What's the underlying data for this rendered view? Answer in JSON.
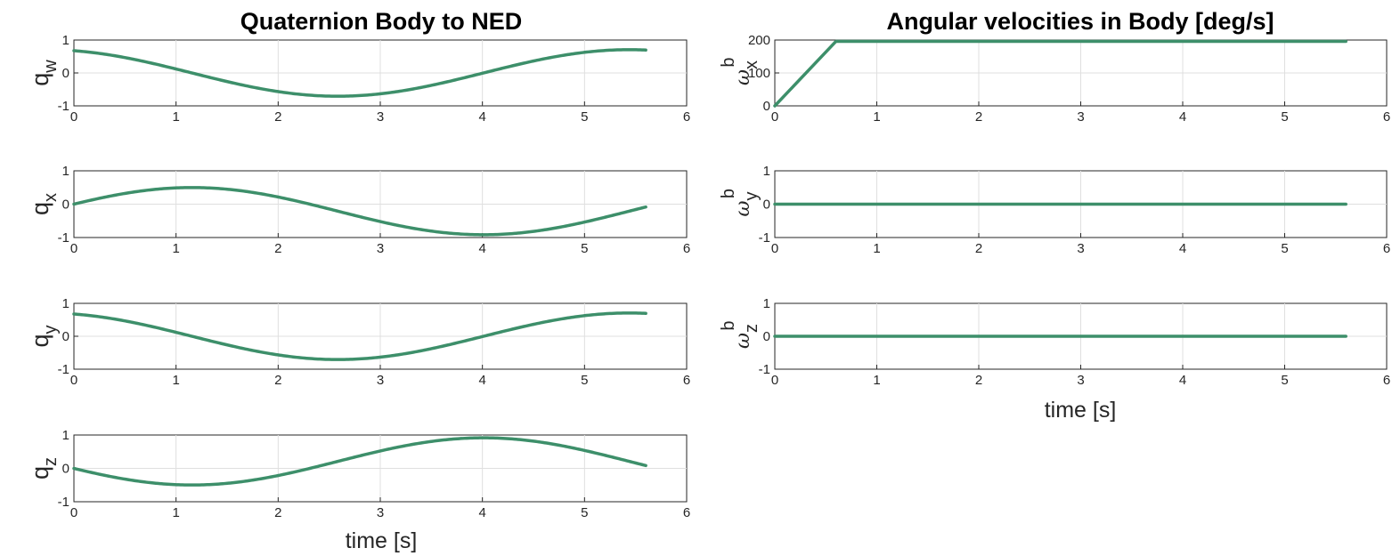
{
  "colors": {
    "series": "#3d8f6a",
    "axis": "#262626",
    "grid": "#dfdfdf"
  },
  "titles": {
    "left": "Quaternion Body to NED",
    "right": "Angular velocities in Body [deg/s]"
  },
  "xlabels": {
    "left": "time [s]",
    "right": "time [s]"
  },
  "chart_data": [
    {
      "type": "line",
      "title": "Quaternion Body to NED",
      "ylabel_main": "q",
      "ylabel_sub": "w",
      "xlabel": "",
      "xlim": [
        0,
        6
      ],
      "ylim": [
        -1,
        1
      ],
      "xticks": [
        0,
        1,
        2,
        3,
        4,
        5,
        6
      ],
      "yticks": [
        -1,
        0,
        1
      ],
      "grid": true,
      "series": [
        {
          "fn": "cos",
          "amplitude": 0.7071,
          "phase_shift": 0.3,
          "x_end": 5.6
        }
      ]
    },
    {
      "type": "line",
      "ylabel_main": "q",
      "ylabel_sub": "x",
      "xlabel": "",
      "xlim": [
        0,
        6
      ],
      "ylim": [
        -1,
        1
      ],
      "xticks": [
        0,
        1,
        2,
        3,
        4,
        5,
        6
      ],
      "yticks": [
        -1,
        0,
        1
      ],
      "grid": true,
      "series": [
        {
          "fn": "sin",
          "amplitude": 0.7071,
          "phase_shift": 0.3,
          "x_end": 5.6
        }
      ]
    },
    {
      "type": "line",
      "ylabel_main": "q",
      "ylabel_sub": "y",
      "xlabel": "",
      "xlim": [
        0,
        6
      ],
      "ylim": [
        -1,
        1
      ],
      "xticks": [
        0,
        1,
        2,
        3,
        4,
        5,
        6
      ],
      "yticks": [
        -1,
        0,
        1
      ],
      "grid": true,
      "series": [
        {
          "fn": "cos",
          "amplitude": 0.7071,
          "phase_shift": 0.3,
          "x_end": 5.6
        }
      ]
    },
    {
      "type": "line",
      "ylabel_main": "q",
      "ylabel_sub": "z",
      "xlabel": "time [s]",
      "xlim": [
        0,
        6
      ],
      "ylim": [
        -1,
        1
      ],
      "xticks": [
        0,
        1,
        2,
        3,
        4,
        5,
        6
      ],
      "yticks": [
        -1,
        0,
        1
      ],
      "grid": true,
      "series": [
        {
          "fn": "-sin",
          "amplitude": 0.7071,
          "phase_shift": 0.3,
          "x_end": 5.6
        }
      ]
    },
    {
      "type": "line",
      "title": "Angular velocities in Body [deg/s]",
      "ylabel_main": "ω",
      "ylabel_sub": "x",
      "ylabel_sup": "b",
      "xlabel": "",
      "xlim": [
        0,
        6
      ],
      "ylim": [
        0,
        200
      ],
      "xticks": [
        0,
        1,
        2,
        3,
        4,
        5,
        6
      ],
      "yticks": [
        0,
        100,
        200
      ],
      "grid": true,
      "series": [
        {
          "x": [
            0,
            0.6,
            5.6
          ],
          "y": [
            0,
            196,
            196
          ]
        }
      ]
    },
    {
      "type": "line",
      "ylabel_main": "ω",
      "ylabel_sub": "y",
      "ylabel_sup": "b",
      "xlabel": "",
      "xlim": [
        0,
        6
      ],
      "ylim": [
        -1,
        1
      ],
      "xticks": [
        0,
        1,
        2,
        3,
        4,
        5,
        6
      ],
      "yticks": [
        -1,
        0,
        1
      ],
      "grid": true,
      "series": [
        {
          "x": [
            0,
            5.6
          ],
          "y": [
            0,
            0
          ]
        }
      ]
    },
    {
      "type": "line",
      "ylabel_main": "ω",
      "ylabel_sub": "z",
      "ylabel_sup": "b",
      "xlabel": "time [s]",
      "xlim": [
        0,
        6
      ],
      "ylim": [
        -1,
        1
      ],
      "xticks": [
        0,
        1,
        2,
        3,
        4,
        5,
        6
      ],
      "yticks": [
        -1,
        0,
        1
      ],
      "grid": true,
      "series": [
        {
          "x": [
            0,
            5.6
          ],
          "y": [
            0,
            0
          ]
        }
      ]
    }
  ]
}
